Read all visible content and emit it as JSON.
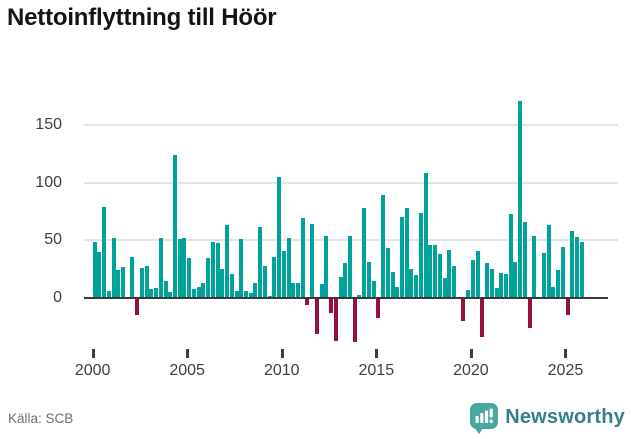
{
  "title": "Nettoinflyttning till Höör",
  "source": "Källa: SCB",
  "branding": {
    "name": "Newsworthy",
    "icon": "newsworthy-bar-chart-bubble-icon"
  },
  "colors": {
    "bar_positive": "#00a39b",
    "bar_negative": "#970e44",
    "axis_line": "#3a3a3a",
    "gridline": "#e4e4e4",
    "title_text": "#141414",
    "tick_label": "#3f3f3f",
    "source_text": "#6e7076",
    "brand_text": "#35808d",
    "brand_icon": "#4ba8a1"
  },
  "chart_data": {
    "type": "bar",
    "title": "Nettoinflyttning till Höör",
    "xlabel": "",
    "ylabel": "",
    "yticks": [
      0,
      50,
      100,
      150
    ],
    "ylim": [
      -45,
      175
    ],
    "xticks": [
      "2000",
      "2005",
      "2010",
      "2015",
      "2020",
      "2025"
    ],
    "grid": "horizontal",
    "legend": "none",
    "x": [
      "2000 Q1",
      "2000 Q2",
      "2000 Q3",
      "2000 Q4",
      "2001 Q1",
      "2001 Q2",
      "2001 Q3",
      "2001 Q4",
      "2002 Q1",
      "2002 Q2",
      "2002 Q3",
      "2002 Q4",
      "2003 Q1",
      "2003 Q2",
      "2003 Q3",
      "2003 Q4",
      "2004 Q1",
      "2004 Q2",
      "2004 Q3",
      "2004 Q4",
      "2005 Q1",
      "2005 Q2",
      "2005 Q3",
      "2005 Q4",
      "2006 Q1",
      "2006 Q2",
      "2006 Q3",
      "2006 Q4",
      "2007 Q1",
      "2007 Q2",
      "2007 Q3",
      "2007 Q4",
      "2008 Q1",
      "2008 Q2",
      "2008 Q3",
      "2008 Q4",
      "2009 Q1",
      "2009 Q2",
      "2009 Q3",
      "2009 Q4",
      "2010 Q1",
      "2010 Q2",
      "2010 Q3",
      "2010 Q4",
      "2011 Q1",
      "2011 Q2",
      "2011 Q3",
      "2011 Q4",
      "2012 Q1",
      "2012 Q2",
      "2012 Q3",
      "2012 Q4",
      "2013 Q1",
      "2013 Q2",
      "2013 Q3",
      "2013 Q4",
      "2014 Q1",
      "2014 Q2",
      "2014 Q3",
      "2014 Q4",
      "2015 Q1",
      "2015 Q2",
      "2015 Q3",
      "2015 Q4",
      "2016 Q1",
      "2016 Q2",
      "2016 Q3",
      "2016 Q4",
      "2017 Q1",
      "2017 Q2",
      "2017 Q3",
      "2017 Q4",
      "2018 Q1",
      "2018 Q2",
      "2018 Q3",
      "2018 Q4",
      "2019 Q1",
      "2019 Q2",
      "2019 Q3",
      "2019 Q4",
      "2020 Q1",
      "2020 Q2",
      "2020 Q3",
      "2020 Q4",
      "2021 Q1",
      "2021 Q2",
      "2021 Q3",
      "2021 Q4",
      "2022 Q1",
      "2022 Q2",
      "2022 Q3",
      "2022 Q4",
      "2023 Q1",
      "2023 Q2",
      "2023 Q3",
      "2023 Q4",
      "2024 Q1",
      "2024 Q2",
      "2024 Q3",
      "2024 Q4",
      "2025 Q1",
      "2025 Q2",
      "2025 Q3",
      "2025 Q4"
    ],
    "values": [
      49,
      40,
      79,
      6,
      52,
      24,
      27,
      0,
      36,
      -14,
      26,
      28,
      8,
      9,
      52,
      15,
      5,
      124,
      51,
      52,
      35,
      8,
      10,
      13,
      35,
      49,
      48,
      25,
      63,
      21,
      6,
      51,
      6,
      4,
      13,
      62,
      28,
      2,
      36,
      105,
      41,
      52,
      13,
      13,
      69,
      -5,
      64,
      -30,
      12,
      54,
      -12,
      -36,
      18,
      30,
      54,
      -37,
      3,
      78,
      31,
      15,
      -16,
      89,
      43,
      23,
      10,
      70,
      78,
      25,
      20,
      74,
      108,
      46,
      46,
      38,
      17,
      42,
      28,
      0,
      -19,
      7,
      33,
      41,
      -33,
      30,
      25,
      9,
      22,
      21,
      73,
      31,
      171,
      66,
      -25,
      54,
      0,
      39,
      63,
      10,
      24,
      44,
      -14,
      58,
      53,
      49
    ]
  }
}
